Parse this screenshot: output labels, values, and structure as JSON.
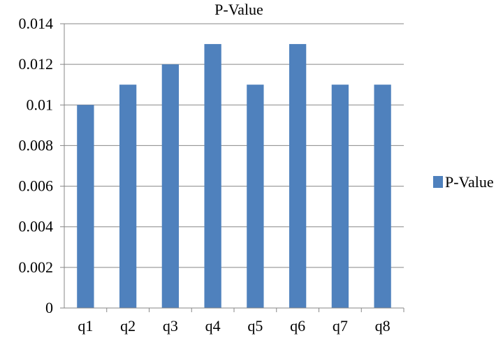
{
  "chart_data": {
    "type": "bar",
    "title": "P-Value",
    "xlabel": "",
    "ylabel": "",
    "categories": [
      "q1",
      "q2",
      "q3",
      "q4",
      "q5",
      "q6",
      "q7",
      "q8"
    ],
    "series": [
      {
        "name": "P-Value",
        "values": [
          0.01,
          0.011,
          0.012,
          0.013,
          0.011,
          0.013,
          0.011,
          0.011
        ],
        "color": "#4f81bd"
      }
    ],
    "ylim": [
      0,
      0.014
    ],
    "yticks": [
      "0",
      "0.002",
      "0.004",
      "0.006",
      "0.008",
      "0.01",
      "0.012",
      "0.014"
    ],
    "grid": true,
    "legend_position": "right",
    "colors": {
      "gridline": "#878787",
      "axis": "#878787",
      "bar": "#4f81bd"
    }
  }
}
